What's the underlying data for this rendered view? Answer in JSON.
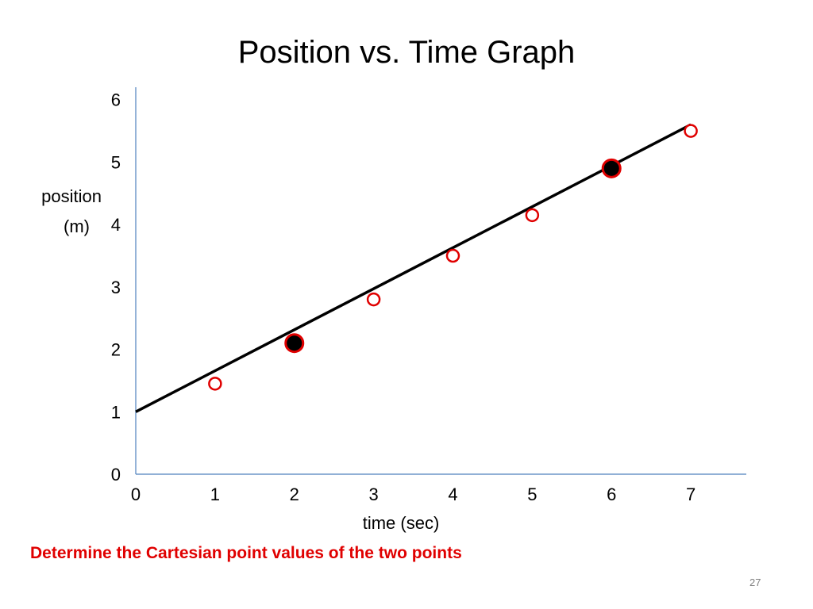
{
  "slide": {
    "title": "Position vs. Time Graph",
    "instruction": "Determine the  Cartesian point values of the two points",
    "page_number": "27"
  },
  "colors": {
    "axis": "#4f81bd",
    "line": "#000000",
    "marker_edge": "#e00000",
    "instruction_text": "#e00000",
    "highlight_fill": "#000000",
    "open_fill": "#ffffff"
  },
  "chart_data": {
    "type": "line",
    "title": "",
    "xlabel": "time  (sec)",
    "ylabel_lines": [
      "position",
      "(m)"
    ],
    "xlim": [
      0,
      7.7
    ],
    "ylim": [
      0,
      6.2
    ],
    "x_ticks": [
      "0",
      "1",
      "2",
      "3",
      "4",
      "5",
      "6",
      "7"
    ],
    "y_ticks": [
      "0",
      "1",
      "2",
      "3",
      "4",
      "5",
      "6"
    ],
    "grid": false,
    "line": {
      "x": [
        0,
        7
      ],
      "y": [
        1.0,
        5.6
      ]
    },
    "series": [
      {
        "marker": "open-circle",
        "points": [
          {
            "x": 1,
            "y": 1.45
          },
          {
            "x": 3,
            "y": 2.8
          },
          {
            "x": 4,
            "y": 3.5
          },
          {
            "x": 5,
            "y": 4.15
          },
          {
            "x": 7,
            "y": 5.5
          }
        ]
      },
      {
        "marker": "filled-circle",
        "points": [
          {
            "x": 2,
            "y": 2.1
          },
          {
            "x": 6,
            "y": 4.9
          }
        ]
      }
    ]
  }
}
